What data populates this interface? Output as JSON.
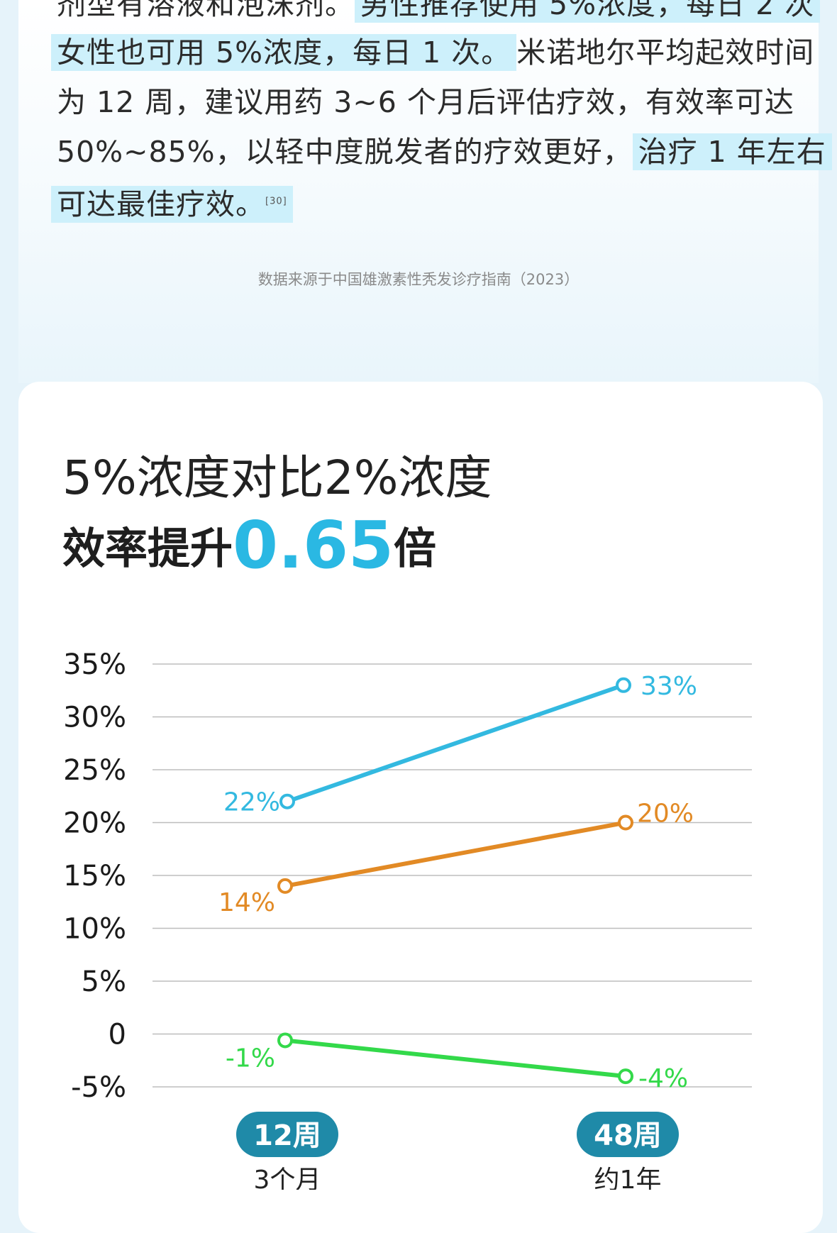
{
  "article": {
    "lines": [
      {
        "segments": [
          {
            "text": "剂型有溶液和泡沫剂。",
            "hl": false
          },
          {
            "text": "男性推荐使用 5%浓度，每日 2 次",
            "hl": true
          }
        ]
      },
      {
        "segments": [
          {
            "text": "女性也可用 5%浓度，每日 1 次。",
            "hl": true
          },
          {
            "text": "米诺地尔平均起效时间",
            "hl": false
          }
        ]
      },
      {
        "segments": [
          {
            "text": "为 12 周，建议用药 3~6 个月后评估疗效，有效率可达",
            "hl": false
          }
        ]
      },
      {
        "segments": [
          {
            "text": "50%~85%，以轻中度脱发者的疗效更好，",
            "hl": false
          },
          {
            "text": "治疗 1 年左右",
            "hl": true
          }
        ]
      },
      {
        "segments": [
          {
            "text": "可达最佳疗效。",
            "hl": true,
            "cite": "[30]"
          }
        ]
      }
    ],
    "source": "数据来源于中国雄激素性秃发诊疗指南（2023）"
  },
  "headline": {
    "line1": "5%浓度对比2%浓度",
    "line2_prefix": "效率提升",
    "line2_value": "0.65",
    "line2_suffix": "倍"
  },
  "chart_data": {
    "type": "line",
    "title": "",
    "ylim": [
      -5,
      35
    ],
    "yticks": [
      "35%",
      "30%",
      "25%",
      "20%",
      "15%",
      "10%",
      "5%",
      "0",
      "-5%"
    ],
    "ytick_values": [
      35,
      30,
      25,
      20,
      15,
      10,
      5,
      0,
      -5
    ],
    "categories": [
      "12周",
      "48周"
    ],
    "category_sublabels": [
      "3个月",
      "约1年"
    ],
    "series": [
      {
        "values": [
          22,
          33
        ],
        "labels": [
          "22%",
          "33%"
        ],
        "color": "#33b9e0"
      },
      {
        "values": [
          14,
          20
        ],
        "labels": [
          "14%",
          "20%"
        ],
        "color": "#e28a25"
      },
      {
        "values": [
          -0.6,
          -4
        ],
        "labels": [
          "-1%",
          "-4%"
        ],
        "color": "#33d94a"
      }
    ],
    "grid": true,
    "colors": {
      "grid": "#bdbdbd",
      "pill": "#1f8aa8"
    }
  }
}
